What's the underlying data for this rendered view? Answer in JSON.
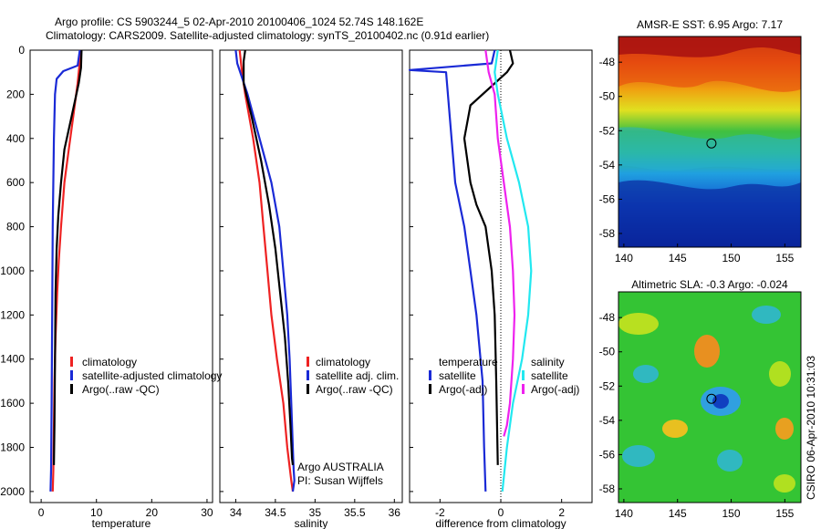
{
  "header": {
    "line1": "Argo profile: CS 5903244_5 02-Apr-2010 20100406_1024 52.74S 148.162E",
    "line2": "Climatology: CARS2009. Satellite-adjusted climatology: synTS_20100402.nc (0.91d earlier)"
  },
  "footer": {
    "credit": "Argo AUSTRALIA",
    "pi": "PI: Susan Wijffels",
    "timestamp": "CSIRO 06-Apr-2010 10:31:03"
  },
  "colors": {
    "climatology": "#ee2222",
    "satellite": "#1a2ad6",
    "argo": "#000000",
    "sat_diff": "#22e8f0",
    "argo_adj_diff": "#ee22ee"
  },
  "chart_data": [
    {
      "type": "line",
      "xlabel": "temperature",
      "ylabel": "",
      "xlim": [
        -2,
        31
      ],
      "ylim": [
        2050,
        0
      ],
      "xticks": [
        0,
        10,
        20,
        30
      ],
      "yticks": [
        0,
        200,
        400,
        600,
        800,
        1000,
        1200,
        1400,
        1600,
        1800,
        2000
      ],
      "legend": [
        "climatology",
        "satellite-adjusted climatology",
        "Argo(..raw -QC)"
      ],
      "legend_position": "bottom-right",
      "series": [
        {
          "name": "climatology",
          "color_key": "climatology",
          "x": [
            7.2,
            7.0,
            6.6,
            5.8,
            5.0,
            4.2,
            3.6,
            3.2,
            2.9,
            2.6,
            2.4,
            2.3,
            2.2,
            2.1
          ],
          "y": [
            0,
            50,
            150,
            300,
            450,
            600,
            800,
            950,
            1100,
            1300,
            1500,
            1700,
            1900,
            2000
          ]
        },
        {
          "name": "satellite-adjusted climatology",
          "color_key": "satellite",
          "x": [
            7.0,
            6.6,
            4.0,
            2.8,
            2.5,
            2.3,
            2.1,
            2.0,
            1.9,
            1.8,
            1.7
          ],
          "y": [
            0,
            70,
            95,
            130,
            200,
            400,
            800,
            1200,
            1600,
            1900,
            2000
          ]
        },
        {
          "name": "Argo(..raw -QC)",
          "color_key": "argo",
          "x": [
            7.3,
            7.2,
            6.8,
            5.5,
            4.2,
            3.6,
            3.1,
            2.8,
            2.6,
            2.5,
            2.4,
            2.3
          ],
          "y": [
            0,
            80,
            150,
            300,
            450,
            600,
            750,
            900,
            1100,
            1400,
            1700,
            1880
          ]
        }
      ]
    },
    {
      "type": "line",
      "xlabel": "salinity",
      "xlim": [
        33.8,
        36.1
      ],
      "ylim": [
        2050,
        0
      ],
      "xticks": [
        34,
        34.5,
        35,
        35.5,
        36
      ],
      "xtick_labels": [
        "34",
        "34.5",
        "35",
        "35.5",
        "36"
      ],
      "legend": [
        "climatology",
        "satellite adj. clim.",
        "Argo(..raw -QC)"
      ],
      "legend_position": "bottom-right",
      "series": [
        {
          "name": "climatology",
          "color_key": "climatology",
          "x": [
            34.05,
            34.08,
            34.12,
            34.22,
            34.3,
            34.35,
            34.4,
            34.45,
            34.52,
            34.6,
            34.65,
            34.7,
            34.72
          ],
          "y": [
            0,
            100,
            200,
            400,
            600,
            800,
            1000,
            1200,
            1400,
            1600,
            1800,
            1950,
            2000
          ]
        },
        {
          "name": "satellite adj. clim.",
          "color_key": "satellite",
          "x": [
            34.0,
            34.02,
            34.15,
            34.3,
            34.45,
            34.55,
            34.6,
            34.65,
            34.68,
            34.7,
            34.72,
            34.73,
            34.74,
            34.72
          ],
          "y": [
            0,
            60,
            200,
            400,
            600,
            800,
            1000,
            1200,
            1400,
            1600,
            1800,
            1900,
            1950,
            2000
          ]
        },
        {
          "name": "Argo(..raw -QC)",
          "color_key": "argo",
          "x": [
            34.12,
            34.1,
            34.1,
            34.2,
            34.32,
            34.42,
            34.5,
            34.56,
            34.62,
            34.66,
            34.69,
            34.71,
            34.72
          ],
          "y": [
            0,
            50,
            150,
            300,
            500,
            700,
            900,
            1100,
            1300,
            1500,
            1700,
            1850,
            1880
          ]
        }
      ]
    },
    {
      "type": "line",
      "xlabel": "difference from climatology",
      "xlim": [
        -3,
        3
      ],
      "ylim": [
        2050,
        0
      ],
      "xticks": [
        -2,
        0,
        2
      ],
      "zero_line": 0,
      "legend_groups": [
        {
          "title": "temperature",
          "items": [
            "satellite",
            "Argo(-adj)"
          ]
        },
        {
          "title": "salinity",
          "items": [
            "satellite",
            "Argo(-adj)"
          ]
        }
      ],
      "legend_position": "bottom",
      "series": [
        {
          "name": "satellite",
          "group": "temperature",
          "color_key": "satellite",
          "x": [
            -0.2,
            -0.3,
            -3.0,
            -1.8,
            -1.5,
            -1.2,
            -1.0,
            -0.8,
            -0.6,
            -0.55,
            -0.5
          ],
          "y": [
            0,
            60,
            90,
            100,
            600,
            800,
            1000,
            1200,
            1500,
            1800,
            2000
          ]
        },
        {
          "name": "Argo(-adj)",
          "group": "temperature",
          "color_key": "argo",
          "x": [
            0.3,
            0.4,
            0.2,
            -1.0,
            -1.2,
            -1.0,
            -0.8,
            -0.5,
            -0.3,
            -0.2,
            -0.15,
            -0.1
          ],
          "y": [
            0,
            60,
            100,
            250,
            400,
            600,
            700,
            800,
            1000,
            1200,
            1500,
            1880
          ]
        },
        {
          "name": "satellite",
          "group": "salinity",
          "color_key": "sat_diff",
          "x": [
            -0.1,
            -0.2,
            -0.1,
            0.2,
            0.6,
            0.9,
            1.0,
            0.9,
            0.7,
            0.4,
            0.2,
            0.05
          ],
          "y": [
            0,
            100,
            200,
            400,
            600,
            800,
            1000,
            1200,
            1400,
            1600,
            1800,
            2000
          ]
        },
        {
          "name": "Argo(-adj)",
          "group": "salinity",
          "color_key": "argo_adj_diff",
          "x": [
            -0.5,
            -0.4,
            -0.2,
            -0.1,
            0.1,
            0.3,
            0.4,
            0.45,
            0.4,
            0.3,
            0.2,
            0.1
          ],
          "y": [
            0,
            100,
            200,
            400,
            600,
            800,
            1000,
            1200,
            1400,
            1600,
            1700,
            1750
          ]
        }
      ]
    },
    {
      "type": "heatmap",
      "title": "AMSR-E SST: 6.95 Argo: 7.17",
      "xlim": [
        139.5,
        156.5
      ],
      "ylim": [
        -58.8,
        -46.5
      ],
      "xticks": [
        140,
        145,
        150,
        155
      ],
      "yticks": [
        -48,
        -50,
        -52,
        -54,
        -56,
        -58
      ],
      "marker": {
        "lon": 148.162,
        "lat": -52.74
      },
      "colormap": "jet"
    },
    {
      "type": "heatmap",
      "title": "Altimetric SLA: -0.3 Argo: -0.024",
      "xlim": [
        139.5,
        156.5
      ],
      "ylim": [
        -58.8,
        -46.5
      ],
      "xticks": [
        140,
        145,
        150,
        155
      ],
      "yticks": [
        -48,
        -50,
        -52,
        -54,
        -56,
        -58
      ],
      "marker": {
        "lon": 148.162,
        "lat": -52.74
      },
      "colormap": "jet"
    }
  ]
}
